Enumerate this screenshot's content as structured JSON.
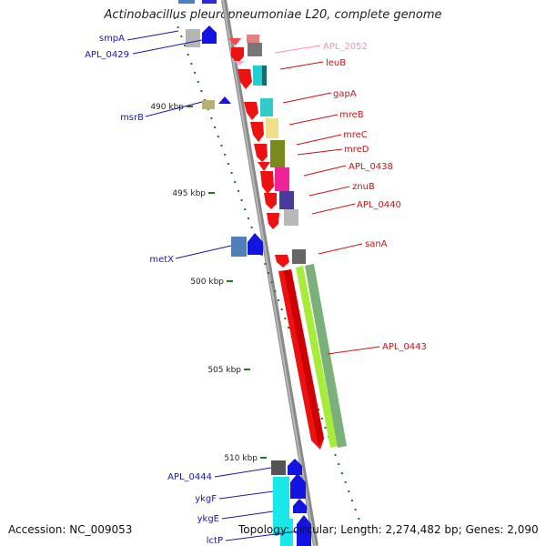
{
  "title": "Actinobacillus pleuropneumoniae L20, complete genome",
  "accession": "Accession: NC_009053",
  "topology": "Topology: circular; Length: 2,274,482 bp; Genes: 2,090",
  "ruler_ticks": [
    "490 kbp",
    "495 kbp",
    "500 kbp",
    "505 kbp",
    "510 kbp"
  ],
  "genes_left": [
    "smpA",
    "APL_0429",
    "msrB",
    "metX",
    "APL_0444",
    "ykgF",
    "ykgE",
    "lctP"
  ],
  "genes_right": [
    "APL_2052",
    "leuB",
    "gapA",
    "mreB",
    "mreC",
    "mreD",
    "APL_0438",
    "znuB",
    "APL_0440",
    "sanA",
    "APL_0443"
  ],
  "colors": {
    "backbone": "#8c8c8c",
    "forward_cds": "#ee1111",
    "reverse_cds": "#1111dd",
    "tick": "#1f7a1f",
    "left_label": "#1a1aa0",
    "right_label": "#cc1111",
    "pseudo_label": "#ff8fb0"
  }
}
